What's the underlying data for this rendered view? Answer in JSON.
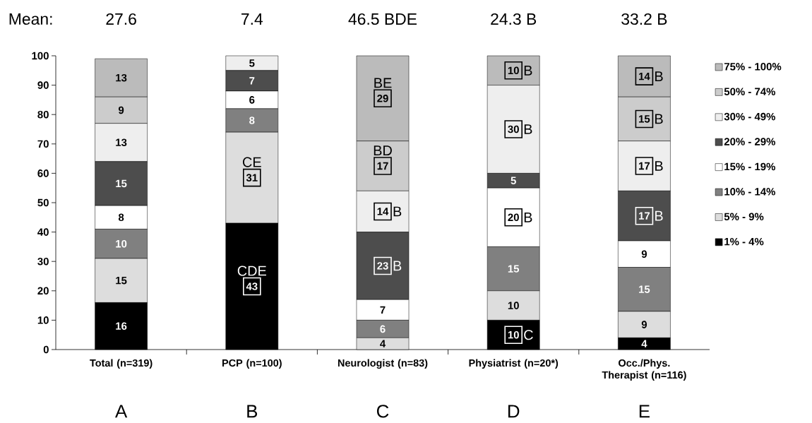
{
  "chart_data": {
    "type": "bar",
    "stacked": true,
    "legend": "right",
    "categories": [
      "Total (n=319)",
      "PCP (n=100)",
      "Neurologist (n=83)",
      "Physiatrist (n=20*)",
      "Occ./Phys. Therapist (n=116)"
    ],
    "ylim": [
      0,
      100
    ],
    "yticks": [
      0,
      10,
      20,
      30,
      40,
      50,
      60,
      70,
      80,
      90,
      100
    ],
    "series": [
      {
        "name": "1% - 4%",
        "color": "#000000",
        "values": [
          16,
          43,
          0,
          10,
          4
        ],
        "value_labels": [
          "16",
          "43",
          null,
          "10",
          "4"
        ]
      },
      {
        "name": "5% - 9%",
        "color": "#dddddd",
        "values": [
          15,
          31,
          4,
          10,
          9
        ],
        "value_labels": [
          "15",
          "31",
          "4",
          "10",
          "9"
        ]
      },
      {
        "name": "10% - 14%",
        "color": "#808080",
        "values": [
          10,
          8,
          6,
          15,
          15
        ],
        "value_labels": [
          "10",
          "8",
          "6",
          "15",
          "15"
        ]
      },
      {
        "name": "15% - 19%",
        "color": "#ffffff",
        "values": [
          8,
          6,
          7,
          20,
          9
        ],
        "value_labels": [
          "8",
          "6",
          "7",
          "20",
          "9"
        ]
      },
      {
        "name": "20% - 29%",
        "color": "#4d4d4d",
        "values": [
          15,
          7,
          23,
          5,
          17
        ],
        "value_labels": [
          "15",
          "7",
          "23",
          "5",
          "17"
        ]
      },
      {
        "name": "30% - 49%",
        "color": "#eeeeee",
        "values": [
          13,
          5,
          14,
          30,
          17
        ],
        "value_labels": [
          "13",
          "5",
          "14",
          "30",
          "17"
        ]
      },
      {
        "name": "50% - 74%",
        "color": "#cccccc",
        "values": [
          9,
          0,
          17,
          0,
          15
        ],
        "value_labels": [
          "9",
          null,
          "17",
          null,
          "15"
        ]
      },
      {
        "name": "75% - 100%",
        "color": "#bbbbbb",
        "values": [
          13,
          0,
          29,
          10,
          14
        ],
        "value_labels": [
          "13",
          null,
          "29",
          "10",
          "14"
        ]
      }
    ],
    "annotations": [
      "Mean:",
      "27.6",
      "7.4",
      "46.5 BDE",
      "24.3 B",
      "33.2 B",
      "A",
      "B",
      "C",
      "D",
      "E",
      {
        "text": "CE",
        "x": "PCP (n=100)",
        "y": 58.5
      },
      {
        "text": "CDE",
        "x": "PCP (n=100)",
        "y": 21.5
      },
      {
        "text": "BE",
        "x": "Neurologist (n=83)",
        "y": 85.5
      },
      {
        "text": "BD",
        "x": "Neurologist (n=83)",
        "y": 62.5
      },
      {
        "text": "B",
        "x": "Neurologist (n=83)",
        "y": 47
      },
      {
        "text": "B",
        "x": "Neurologist (n=83)",
        "y": 28.5
      },
      {
        "text": "B",
        "x": "Physiatrist (n=20*)",
        "y": 95
      },
      {
        "text": "B",
        "x": "Physiatrist (n=20*)",
        "y": 75
      },
      {
        "text": "B",
        "x": "Physiatrist (n=20*)",
        "y": 45
      },
      {
        "text": "C",
        "x": "Physiatrist (n=20*)",
        "y": 5
      },
      {
        "text": "B",
        "x": "Occ./Phys. Therapist (n=116)",
        "y": 93
      },
      {
        "text": "B",
        "x": "Occ./Phys. Therapist (n=116)",
        "y": 78.5
      },
      {
        "text": "B",
        "x": "Occ./Phys. Therapist (n=116)",
        "y": 62.5
      },
      {
        "text": "B",
        "x": "Occ./Phys. Therapist (n=116)",
        "y": 45.5
      }
    ]
  }
}
